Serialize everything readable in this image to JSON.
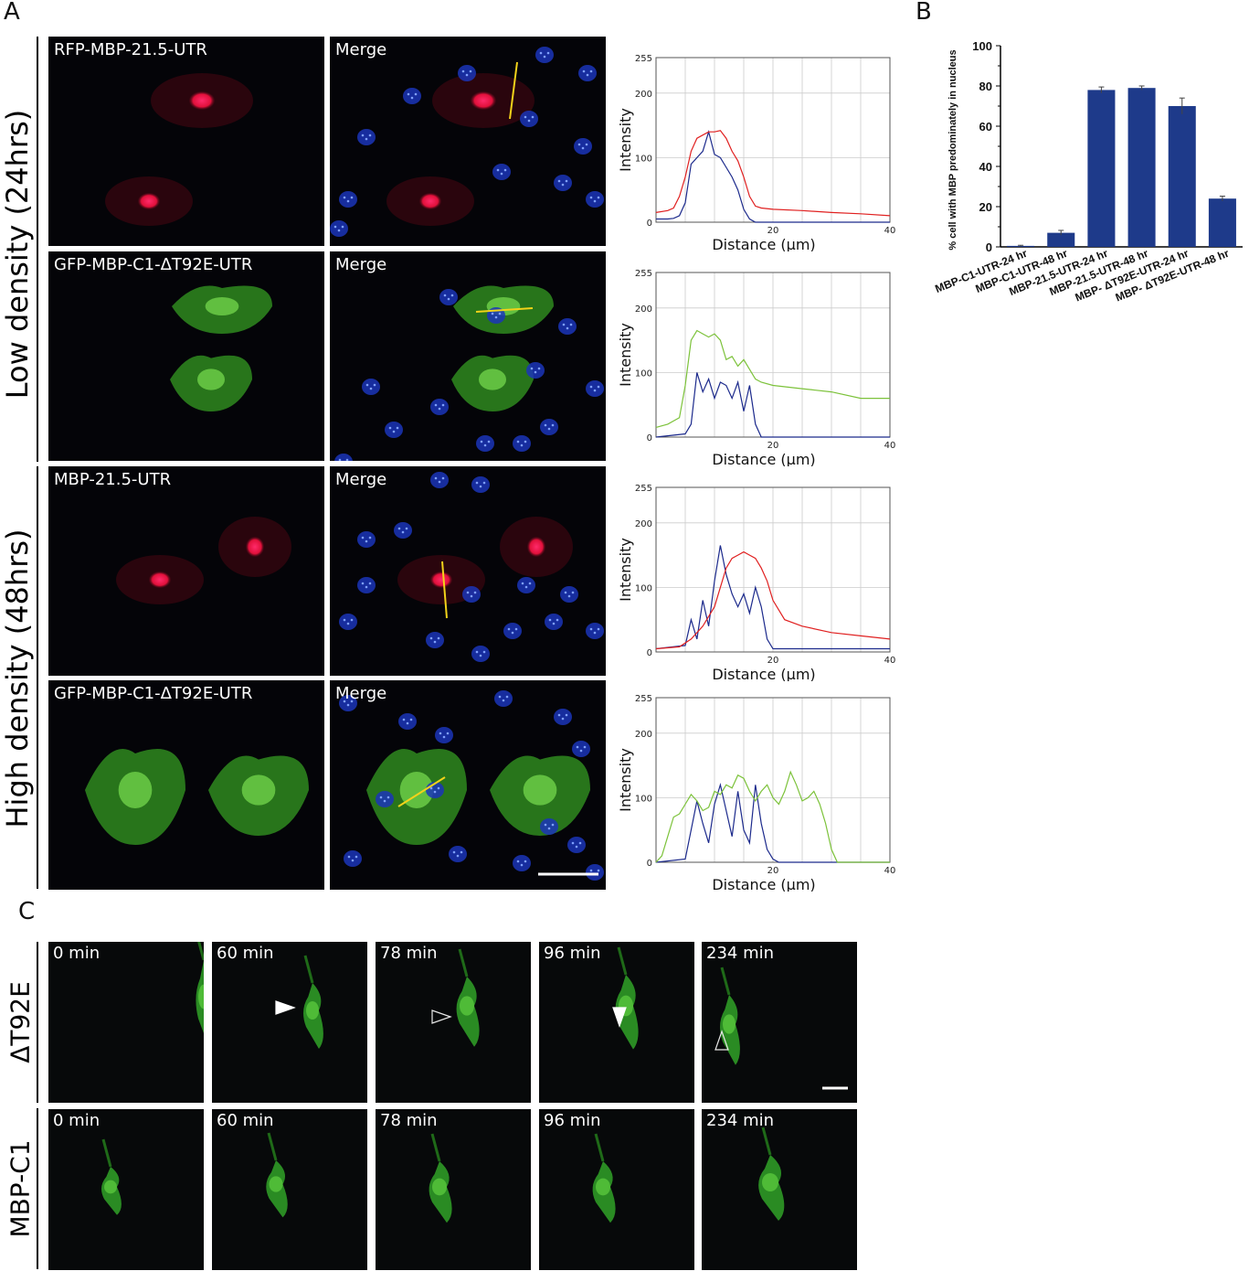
{
  "figure": {
    "labels": {
      "A": "A",
      "B": "B",
      "C": "C"
    }
  },
  "panelA": {
    "row_labels": {
      "low": "Low density (24hrs)",
      "high": "High density (48hrs)"
    },
    "rows": [
      {
        "name": "RFP-MBP-21.5-UTR",
        "merge": "Merge",
        "channel": "red"
      },
      {
        "name": "GFP-MBP-C1-ΔT92E-UTR",
        "merge": "Merge",
        "channel": "green"
      },
      {
        "name": "MBP-21.5-UTR",
        "merge": "Merge",
        "channel": "red"
      },
      {
        "name": "GFP-MBP-C1-ΔT92E-UTR",
        "merge": "Merge",
        "channel": "green"
      }
    ]
  },
  "profiles": {
    "ylabel": "Intensity",
    "xlabel": "Distance (µm)",
    "yticks": [
      "0",
      "100",
      "200",
      "255"
    ],
    "xticks": [
      "20",
      "40"
    ],
    "colors": {
      "blue": "#1c2a8c",
      "red": "#e02020",
      "green": "#7cc23a"
    }
  },
  "chart_data": [
    {
      "type": "line",
      "xlabel": "Distance (µm)",
      "ylabel": "Intensity",
      "xlim": [
        0,
        40
      ],
      "ylim": [
        0,
        255
      ],
      "series": [
        {
          "color": "#1c2a8c",
          "x": [
            0,
            2,
            3,
            4,
            5,
            6,
            7,
            8,
            9,
            10,
            11,
            12,
            13,
            14,
            15,
            16,
            17,
            40
          ],
          "y": [
            5,
            5,
            6,
            10,
            30,
            90,
            100,
            110,
            140,
            105,
            100,
            85,
            70,
            50,
            20,
            5,
            0,
            0
          ]
        },
        {
          "color": "#e02020",
          "x": [
            0,
            2,
            3,
            4,
            5,
            6,
            7,
            8,
            9,
            10,
            11,
            12,
            13,
            14,
            15,
            16,
            17,
            18,
            20,
            25,
            30,
            35,
            40
          ],
          "y": [
            15,
            18,
            22,
            40,
            70,
            110,
            130,
            135,
            140,
            140,
            142,
            130,
            110,
            95,
            70,
            40,
            25,
            22,
            20,
            18,
            15,
            13,
            10
          ]
        }
      ]
    },
    {
      "type": "line",
      "xlabel": "Distance (µm)",
      "ylabel": "Intensity",
      "xlim": [
        0,
        40
      ],
      "ylim": [
        0,
        255
      ],
      "series": [
        {
          "color": "#1c2a8c",
          "x": [
            0,
            5,
            6,
            7,
            8,
            9,
            10,
            11,
            12,
            13,
            14,
            15,
            16,
            17,
            18,
            40
          ],
          "y": [
            0,
            5,
            20,
            100,
            70,
            90,
            60,
            85,
            80,
            60,
            85,
            40,
            80,
            20,
            0,
            0
          ]
        },
        {
          "color": "#7cc23a",
          "x": [
            0,
            2,
            4,
            5,
            6,
            7,
            8,
            9,
            10,
            11,
            12,
            13,
            14,
            15,
            16,
            17,
            18,
            20,
            25,
            30,
            35,
            40
          ],
          "y": [
            15,
            20,
            30,
            80,
            150,
            165,
            160,
            155,
            160,
            150,
            120,
            125,
            110,
            120,
            105,
            90,
            85,
            80,
            75,
            70,
            60,
            60
          ]
        }
      ]
    },
    {
      "type": "line",
      "xlabel": "Distance (µm)",
      "ylabel": "Intensity",
      "xlim": [
        0,
        40
      ],
      "ylim": [
        0,
        255
      ],
      "series": [
        {
          "color": "#1c2a8c",
          "x": [
            0,
            5,
            6,
            7,
            8,
            9,
            10,
            11,
            12,
            13,
            14,
            15,
            16,
            17,
            18,
            19,
            20,
            40
          ],
          "y": [
            5,
            10,
            50,
            20,
            80,
            40,
            110,
            165,
            120,
            90,
            70,
            90,
            60,
            100,
            70,
            20,
            5,
            5
          ]
        },
        {
          "color": "#e02020",
          "x": [
            0,
            4,
            6,
            8,
            10,
            12,
            13,
            14,
            15,
            16,
            17,
            18,
            19,
            20,
            22,
            25,
            30,
            35,
            40
          ],
          "y": [
            5,
            8,
            20,
            40,
            70,
            130,
            145,
            150,
            155,
            150,
            145,
            130,
            110,
            80,
            50,
            40,
            30,
            25,
            20
          ]
        }
      ]
    },
    {
      "type": "line",
      "xlabel": "Distance (µm)",
      "ylabel": "Intensity",
      "xlim": [
        0,
        40
      ],
      "ylim": [
        0,
        255
      ],
      "series": [
        {
          "color": "#1c2a8c",
          "x": [
            0,
            5,
            6,
            7,
            8,
            9,
            10,
            11,
            12,
            13,
            14,
            15,
            16,
            17,
            18,
            19,
            20,
            21,
            22,
            40
          ],
          "y": [
            0,
            5,
            50,
            95,
            60,
            30,
            90,
            120,
            80,
            40,
            110,
            50,
            30,
            120,
            60,
            20,
            5,
            0,
            0,
            0
          ]
        },
        {
          "color": "#7cc23a",
          "x": [
            0,
            1,
            2,
            3,
            4,
            5,
            6,
            7,
            8,
            9,
            10,
            11,
            12,
            13,
            14,
            15,
            16,
            17,
            18,
            19,
            20,
            21,
            22,
            23,
            24,
            25,
            26,
            27,
            28,
            29,
            30,
            31,
            40
          ],
          "y": [
            0,
            10,
            40,
            70,
            75,
            90,
            105,
            95,
            80,
            85,
            110,
            105,
            120,
            115,
            135,
            130,
            110,
            95,
            110,
            120,
            100,
            90,
            110,
            140,
            120,
            95,
            100,
            110,
            90,
            60,
            20,
            0,
            0
          ]
        }
      ]
    },
    {
      "type": "bar",
      "ylabel": "% cell with MBP predominately in nucleus",
      "categories": [
        "MBP-C1-UTR-24 hr",
        "MBP-C1-UTR-48 hr",
        "MBP-21.5-UTR-24 hr",
        "MBP-21.5-UTR-48 hr",
        "MBP- ΔT92E-UTR-24 hr",
        "MBP- ΔT92E-UTR-48 hr"
      ],
      "values": [
        0.5,
        7,
        78,
        79,
        70,
        24
      ],
      "errors": [
        0.3,
        1.2,
        1.5,
        1.0,
        4.0,
        1.2
      ],
      "ylim": [
        0,
        100
      ],
      "yticks": [
        "0",
        "20",
        "40",
        "60",
        "80",
        "100"
      ],
      "color": "#1e3a8a"
    }
  ],
  "panelC": {
    "row_labels": {
      "top": "ΔT92E",
      "bottom": "MBP-C1"
    },
    "times": [
      "0 min",
      "60 min",
      "78 min",
      "96 min",
      "234 min"
    ]
  }
}
